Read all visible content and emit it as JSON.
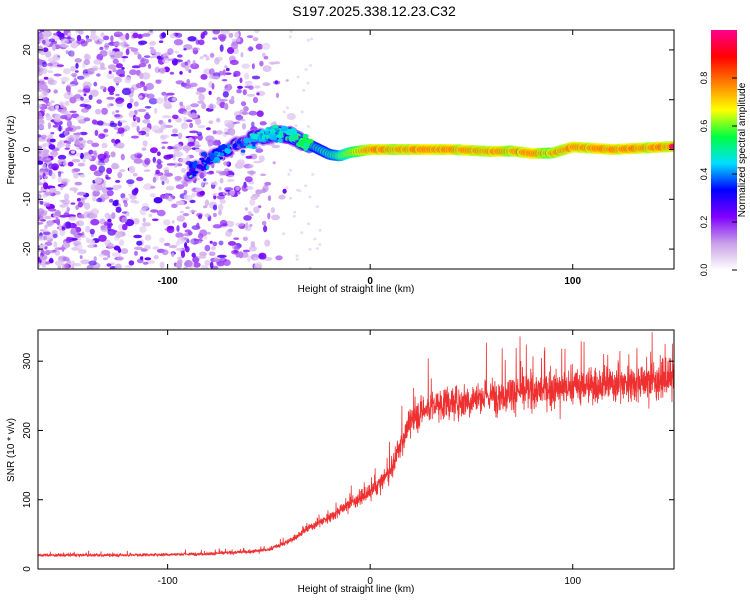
{
  "figure_title": "S197.2025.338.12.23.C32",
  "colorbar": {
    "label": "Normalized spectral amplitude",
    "range": [
      0,
      1
    ],
    "ticks": [
      "0.0",
      "0.2",
      "0.4",
      "0.6",
      "0.8"
    ],
    "tick_values": [
      0.0,
      0.2,
      0.4,
      0.6,
      0.8
    ],
    "stops": [
      "#ffffff",
      "#c9a0e8",
      "#7f00ff",
      "#0000ff",
      "#00e0ff",
      "#00ff40",
      "#ffff00",
      "#ff8000",
      "#ff0000",
      "#ff0090"
    ]
  },
  "chart_data": [
    {
      "type": "heatmap",
      "title": "S197.2025.338.12.23.C32",
      "xlabel": "Height of straight line (km)",
      "ylabel": "Frequency (Hz)",
      "xlim": [
        -164,
        150
      ],
      "ylim": [
        -24,
        24
      ],
      "x_ticks": [
        -100,
        0,
        100
      ],
      "x_tick_labels": [
        "-100",
        "0",
        "100"
      ],
      "y_ticks": [
        20,
        10,
        0,
        -10,
        -20
      ],
      "y_tick_labels": [
        "20",
        "10",
        "0",
        "-10",
        "-20"
      ],
      "ridge": {
        "description": "Doppler frequency trace of the signal",
        "x": [
          -90,
          -80,
          -70,
          -60,
          -50,
          -40,
          -30,
          -20,
          -15,
          -10,
          0,
          40,
          60,
          70,
          80,
          90,
          100,
          120,
          150
        ],
        "freq": [
          -5,
          -2,
          0,
          2,
          3,
          3,
          1,
          -1,
          -1.3,
          -0.6,
          0,
          0,
          -0.4,
          -0.3,
          -0.8,
          -0.7,
          0.5,
          0,
          0.6
        ],
        "amplitude": [
          0.25,
          0.3,
          0.32,
          0.35,
          0.38,
          0.42,
          0.5,
          0.55,
          0.6,
          0.7,
          0.85,
          0.85,
          0.85,
          0.8,
          0.85,
          0.8,
          0.85,
          0.85,
          0.85
        ]
      },
      "noise_region_x": [
        -164,
        -45
      ],
      "colorbar_label": "Normalized spectral amplitude"
    },
    {
      "type": "line",
      "xlabel": "Height of straight line (km)",
      "ylabel": "SNR (10 * v/v)",
      "xlim": [
        -164,
        150
      ],
      "ylim": [
        0,
        345
      ],
      "x_ticks": [
        -100,
        0,
        100
      ],
      "x_tick_labels": [
        "-100",
        "0",
        "100"
      ],
      "y_ticks": [
        0,
        100,
        200,
        300
      ],
      "y_tick_labels": [
        "0",
        "100",
        "200",
        "300"
      ],
      "series": [
        {
          "name": "SNR",
          "color": "#ee3030",
          "trend_x": [
            -164,
            -120,
            -80,
            -60,
            -50,
            -40,
            -30,
            -20,
            -10,
            0,
            10,
            15,
            20,
            30,
            50,
            70,
            100,
            130,
            150
          ],
          "trend_y": [
            20,
            20,
            22,
            25,
            28,
            40,
            60,
            75,
            95,
            110,
            140,
            180,
            215,
            235,
            245,
            255,
            262,
            270,
            275
          ],
          "noise_amplitude_fraction": 0.1,
          "sample_count": 3140
        }
      ]
    }
  ]
}
